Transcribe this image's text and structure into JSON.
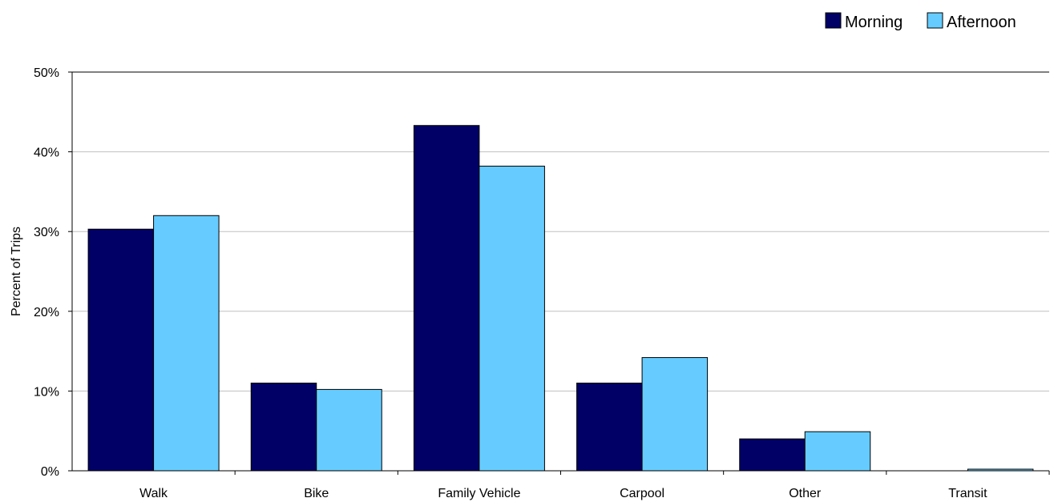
{
  "chart_data": {
    "type": "bar",
    "categories": [
      "Walk",
      "Bike",
      "Family Vehicle",
      "Carpool",
      "Other",
      "Transit"
    ],
    "series": [
      {
        "name": "Morning",
        "values": [
          30.3,
          11.0,
          43.3,
          11.0,
          4.0,
          0.0
        ],
        "color": "#000066"
      },
      {
        "name": "Afternoon",
        "values": [
          32.0,
          10.2,
          38.2,
          14.2,
          4.9,
          0.2
        ],
        "color": "#66ccff"
      }
    ],
    "title": "",
    "xlabel": "",
    "ylabel": "Percent of Trips",
    "ylim": [
      0,
      50
    ],
    "yticks": [
      "0%",
      "10%",
      "20%",
      "30%",
      "40%",
      "50%"
    ],
    "grid": true,
    "gridline_color": "#c0c0c0",
    "legend_position": "top-right"
  }
}
